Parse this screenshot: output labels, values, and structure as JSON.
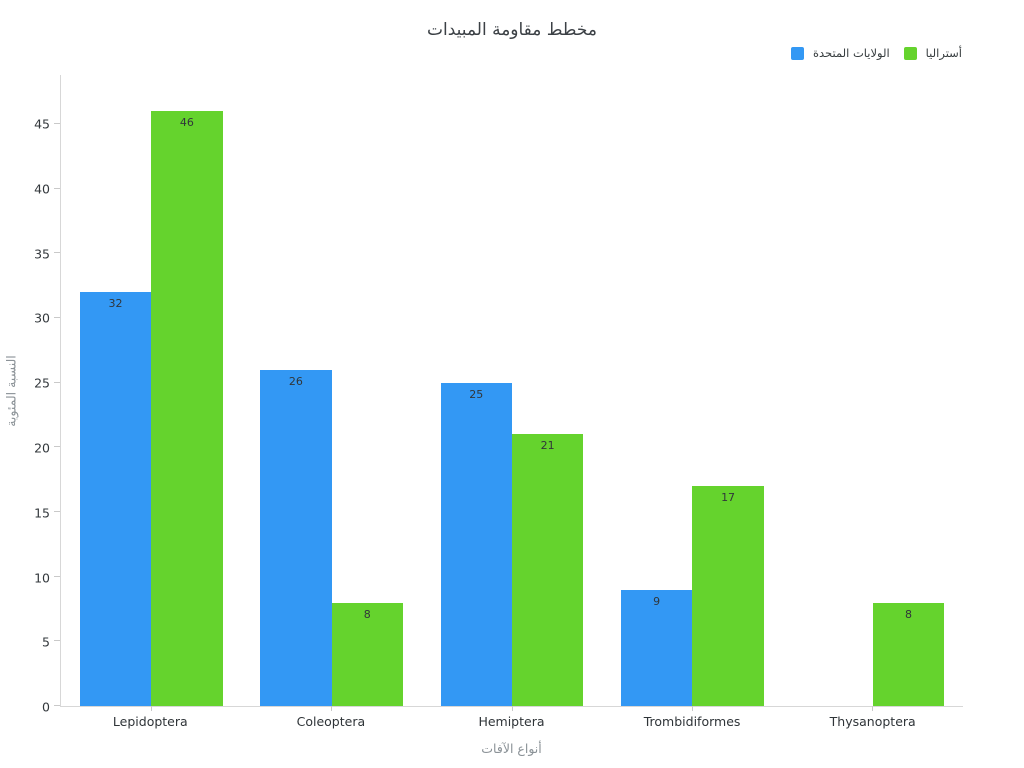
{
  "chart_data": {
    "type": "bar",
    "title": "مخطط مقاومة المبيدات",
    "xlabel": "أنواع الآفات",
    "ylabel": "النسبة المئوية",
    "categories": [
      "Lepidoptera",
      "Coleoptera",
      "Hemiptera",
      "Trombidiformes",
      "Thysanoptera"
    ],
    "series": [
      {
        "name": "الولايات المتحدة",
        "color": "#3398F4",
        "values": [
          32,
          26,
          25,
          9,
          0
        ]
      },
      {
        "name": "أستراليا",
        "color": "#65D32D",
        "values": [
          46,
          8,
          21,
          17,
          8
        ]
      }
    ],
    "yticks": [
      0,
      5,
      10,
      15,
      20,
      25,
      30,
      35,
      40,
      45
    ],
    "ylim": [
      0,
      48.8
    ],
    "grid": false,
    "legend_position": "top-right",
    "value_labels": true
  },
  "colors": {
    "series_blue": "#3398F4",
    "series_green": "#65D32D",
    "axis_line": "#d7d7d7",
    "tick_mark": "#c9c9c9",
    "title_text": "#3b4045",
    "tick_label_text": "#33383c",
    "axis_title_text": "#8b9297",
    "value_label_text": "#31363a"
  }
}
